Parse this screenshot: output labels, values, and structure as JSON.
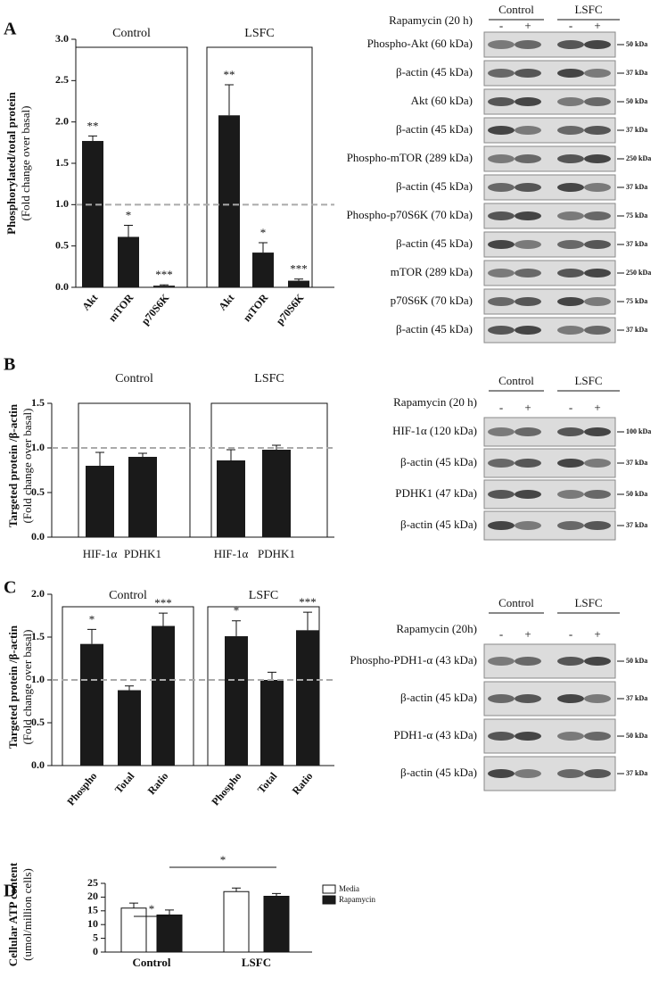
{
  "chart_data": [
    {
      "type": "bar",
      "panel_label": "A",
      "ylabel": [
        "Phosphorylated/total protein",
        "(Fold change over basal)"
      ],
      "ylim": [
        0,
        3
      ],
      "yticks": [
        {
          "value": 0,
          "label": "0.0"
        },
        {
          "value": 0.5,
          "label": "0.5"
        },
        {
          "value": 1,
          "label": "1.0"
        },
        {
          "value": 1.5,
          "label": "1.5"
        },
        {
          "value": 2,
          "label": "2.0"
        },
        {
          "value": 2.5,
          "label": "2.5"
        },
        {
          "value": 3,
          "label": "3.0"
        }
      ],
      "reference_line": 1,
      "color": "#1a1a1a",
      "groups": [
        {
          "name": "Control",
          "categories": [
            "Akt",
            "mTOR",
            "p70S6K"
          ],
          "values": [
            1.77,
            0.61,
            0.02
          ],
          "errors": [
            0.06,
            0.14,
            0.01
          ],
          "annotations": [
            "**",
            "*",
            "***"
          ]
        },
        {
          "name": "LSFC",
          "categories": [
            "Akt",
            "mTOR",
            "p70S6K"
          ],
          "values": [
            2.08,
            0.42,
            0.08
          ],
          "errors": [
            0.37,
            0.12,
            0.02
          ],
          "annotations": [
            "**",
            "*",
            "***"
          ]
        }
      ]
    },
    {
      "type": "bar",
      "panel_label": "B",
      "ylabel": [
        "Targeted protein /β-actin",
        "(Fold change over basal)"
      ],
      "ylim": [
        0,
        1.5
      ],
      "yticks": [
        {
          "value": 0,
          "label": "0.0"
        },
        {
          "value": 0.5,
          "label": "0.5"
        },
        {
          "value": 1,
          "label": "1.0"
        },
        {
          "value": 1.5,
          "label": "1.5"
        }
      ],
      "reference_line": 1,
      "color": "#1a1a1a",
      "groups": [
        {
          "name": "Control",
          "categories": [
            "HIF-1α",
            "PDHK1"
          ],
          "values": [
            0.8,
            0.9
          ],
          "errors": [
            0.15,
            0.04
          ]
        },
        {
          "name": "LSFC",
          "categories": [
            "HIF-1α",
            "PDHK1"
          ],
          "values": [
            0.86,
            0.98
          ],
          "errors": [
            0.12,
            0.05
          ]
        }
      ]
    },
    {
      "type": "bar",
      "panel_label": "C",
      "ylabel": [
        "Targeted protein /β-actin",
        "(Fold change over basal)"
      ],
      "ylim": [
        0,
        2
      ],
      "yticks": [
        {
          "value": 0,
          "label": "0.0"
        },
        {
          "value": 0.5,
          "label": "0.5"
        },
        {
          "value": 1,
          "label": "1.0"
        },
        {
          "value": 1.5,
          "label": "1.5"
        },
        {
          "value": 2,
          "label": "2.0"
        }
      ],
      "reference_line": 1,
      "color": "#1a1a1a",
      "groups": [
        {
          "name": "Control",
          "categories": [
            "Phospho",
            "Total",
            "Ratio"
          ],
          "values": [
            1.42,
            0.88,
            1.63
          ],
          "errors": [
            0.17,
            0.05,
            0.15
          ],
          "annotations": [
            "*",
            null,
            "***"
          ]
        },
        {
          "name": "LSFC",
          "categories": [
            "Phospho",
            "Total",
            "Ratio"
          ],
          "values": [
            1.51,
            1.0,
            1.58
          ],
          "errors": [
            0.18,
            0.09,
            0.21
          ],
          "annotations": [
            "*",
            null,
            "***"
          ]
        }
      ]
    },
    {
      "type": "grouped_bar",
      "panel_label": "D",
      "ylabel": [
        "Cellular ATP content",
        "(umol/million cells)"
      ],
      "ylim": [
        0,
        25
      ],
      "yticks": [
        0,
        5,
        10,
        15,
        20,
        25
      ],
      "legend": "upper right",
      "categories": [
        "Control",
        "LSFC"
      ],
      "series": [
        {
          "name": "Media",
          "color": "#ffffff",
          "values": [
            16,
            22
          ],
          "errors": [
            1.8,
            1.3
          ]
        },
        {
          "name": "Rapamycin",
          "color": "#1a1a1a",
          "values": [
            13.5,
            20.3
          ],
          "errors": [
            1.8,
            1.0
          ]
        }
      ],
      "brackets": [
        "*",
        "*"
      ]
    }
  ],
  "blots": [
    {
      "treatment": "Rapamycin (20 h)",
      "groups": [
        "Control",
        "LSFC"
      ],
      "lanes": [
        "-",
        "+",
        "-",
        "+"
      ],
      "rows": [
        {
          "label": "Phospho-Akt (60 kDa)",
          "marker": "50 kDa"
        },
        {
          "label": "β-actin (45 kDa)",
          "marker": "37 kDa"
        },
        {
          "label": "Akt (60 kDa)",
          "marker": "50 kDa"
        },
        {
          "label": "β-actin (45 kDa)",
          "marker": "37 kDa"
        },
        {
          "label": "Phospho-mTOR (289 kDa)",
          "marker": "250 kDa"
        },
        {
          "label": "β-actin (45 kDa)",
          "marker": "37 kDa"
        },
        {
          "label": "Phospho-p70S6K (70 kDa)",
          "marker": "75 kDa"
        },
        {
          "label": "β-actin (45 kDa)",
          "marker": "37 kDa"
        },
        {
          "label": "mTOR (289 kDa)",
          "marker": "250 kDa"
        },
        {
          "label": "p70S6K (70 kDa)",
          "marker": "75 kDa"
        },
        {
          "label": "β-actin (45 kDa)",
          "marker": "37 kDa"
        }
      ]
    },
    {
      "treatment": "Rapamycin (20 h)",
      "groups": [
        "Control",
        "LSFC"
      ],
      "lanes": [
        "-",
        "+",
        "-",
        "+"
      ],
      "rows": [
        {
          "label": "HIF-1α (120 kDa)",
          "marker": "100 kDa"
        },
        {
          "label": "β-actin (45 kDa)",
          "marker": "37 kDa"
        },
        {
          "label": "PDHK1 (47 kDa)",
          "marker": "50 kDa"
        },
        {
          "label": "β-actin (45 kDa)",
          "marker": "37 kDa"
        }
      ]
    },
    {
      "treatment": "Rapamycin (20h)",
      "groups": [
        "Control",
        "LSFC"
      ],
      "lanes": [
        "-",
        "+",
        "-",
        "+"
      ],
      "rows": [
        {
          "label": "Phospho-PDH1-α (43 kDa)",
          "marker": "50 kDa"
        },
        {
          "label": "β-actin (45 kDa)",
          "marker": "37 kDa"
        },
        {
          "label": "PDH1-α (43 kDa)",
          "marker": "50 kDa"
        },
        {
          "label": "β-actin (45 kDa)",
          "marker": "37 kDa"
        }
      ]
    }
  ]
}
